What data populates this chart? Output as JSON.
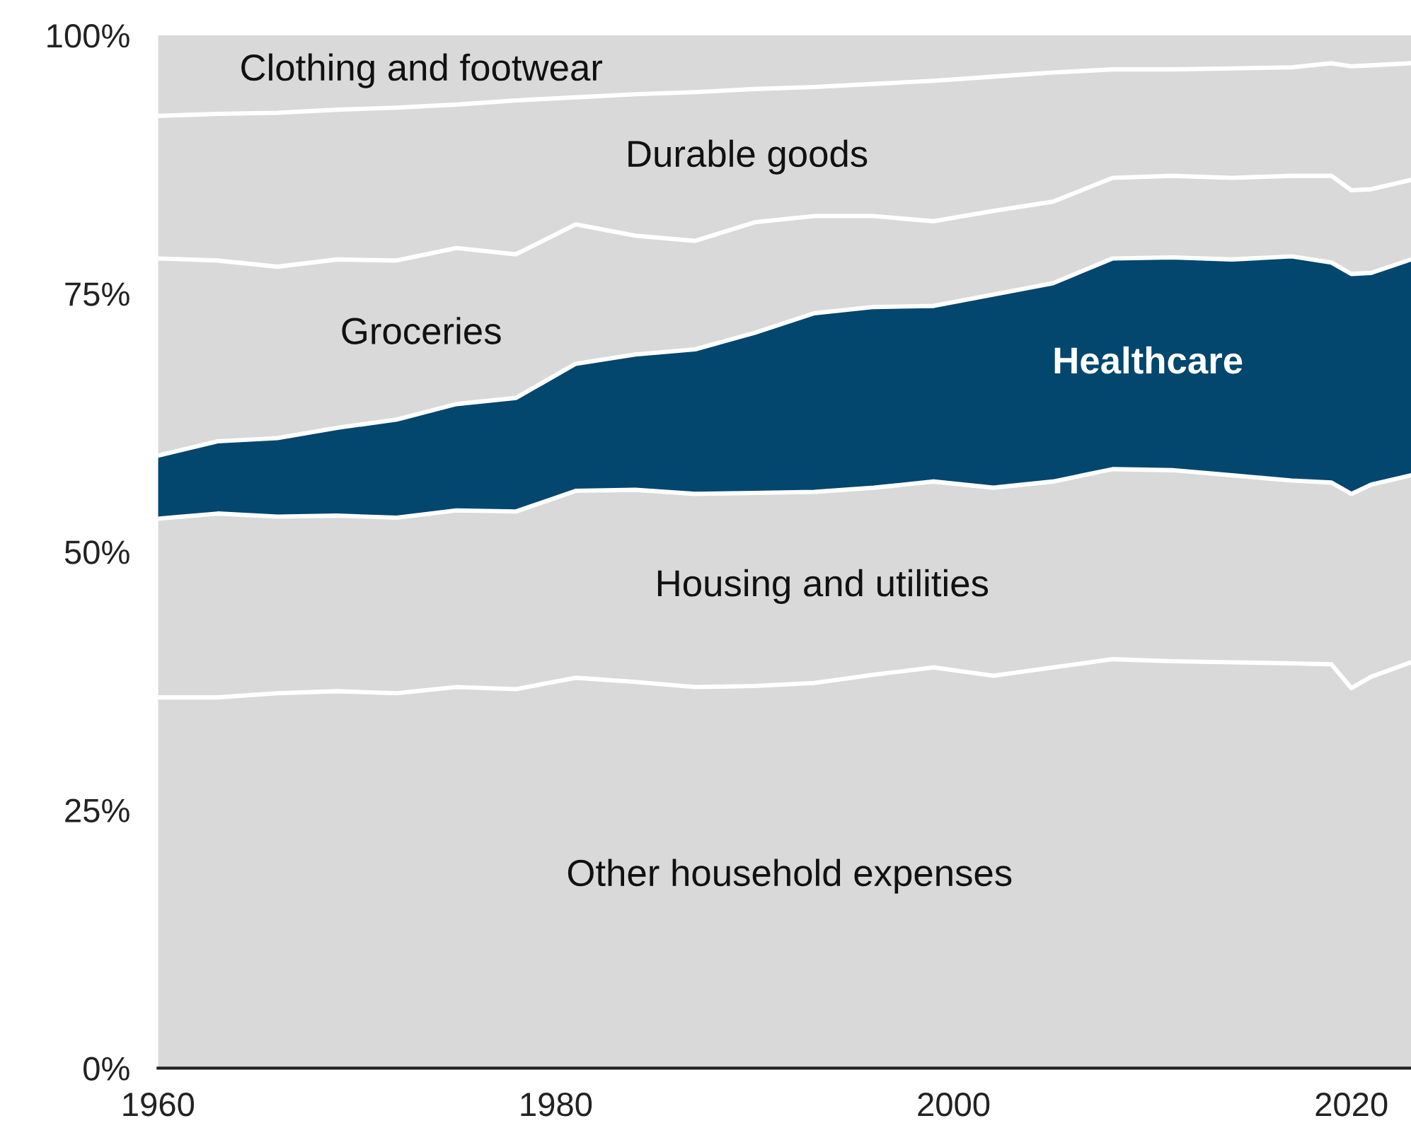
{
  "chart_data": {
    "type": "area",
    "stacked": true,
    "x": [
      1960,
      1963,
      1966,
      1969,
      1972,
      1975,
      1978,
      1981,
      1984,
      1987,
      1990,
      1993,
      1996,
      1999,
      2002,
      2005,
      2008,
      2011,
      2014,
      2017,
      2019,
      2020,
      2021,
      2023
    ],
    "series": [
      {
        "name": "Other household expenses",
        "color": "#d9d9d9",
        "values": [
          35.9,
          35.9,
          36.3,
          36.5,
          36.3,
          36.9,
          36.7,
          37.8,
          37.4,
          36.9,
          37.0,
          37.3,
          38.1,
          38.8,
          38.0,
          38.8,
          39.6,
          39.4,
          39.3,
          39.2,
          39.1,
          36.8,
          37.9,
          39.3
        ]
      },
      {
        "name": "Housing and utilities",
        "color": "#d9d9d9",
        "values": [
          17.3,
          17.8,
          17.1,
          17.0,
          17.0,
          17.1,
          17.2,
          18.1,
          18.6,
          18.7,
          18.7,
          18.5,
          18.1,
          18.0,
          18.2,
          18.0,
          18.4,
          18.5,
          18.1,
          17.7,
          17.6,
          18.8,
          18.6,
          18.1
        ]
      },
      {
        "name": "Healthcare",
        "color": "#03466e",
        "values": [
          6.1,
          7.0,
          7.6,
          8.5,
          9.5,
          10.3,
          11.0,
          12.3,
          13.1,
          14.0,
          15.5,
          17.3,
          17.5,
          17.0,
          18.7,
          19.2,
          20.4,
          20.6,
          20.9,
          21.7,
          21.3,
          21.3,
          20.5,
          20.9
        ]
      },
      {
        "name": "Groceries",
        "color": "#d9d9d9",
        "values": [
          19.1,
          17.5,
          16.6,
          16.3,
          15.4,
          15.1,
          13.9,
          13.5,
          11.5,
          10.5,
          10.7,
          9.4,
          8.8,
          8.2,
          8.1,
          7.9,
          7.8,
          7.9,
          7.9,
          7.8,
          8.4,
          8.1,
          8.1,
          7.7
        ]
      },
      {
        "name": "Durable goods",
        "color": "#d9d9d9",
        "values": [
          13.8,
          14.2,
          14.9,
          14.5,
          14.8,
          13.9,
          14.9,
          12.3,
          13.7,
          14.4,
          12.9,
          12.5,
          12.8,
          13.6,
          13.0,
          12.5,
          10.5,
          10.3,
          10.6,
          10.5,
          10.9,
          12.0,
          12.0,
          11.3
        ]
      },
      {
        "name": "Clothing and footwear",
        "color": "#d9d9d9",
        "values": [
          7.8,
          7.6,
          7.5,
          7.2,
          7.0,
          6.7,
          6.3,
          6.0,
          5.7,
          5.5,
          5.2,
          5.0,
          4.7,
          4.4,
          4.0,
          3.6,
          3.3,
          3.3,
          3.2,
          3.1,
          2.7,
          3.0,
          2.9,
          2.7
        ]
      }
    ],
    "xlim": [
      1960,
      2023
    ],
    "xticks": [
      1960,
      1980,
      2000,
      2020
    ],
    "ylim": [
      0,
      100
    ],
    "yticks": [
      {
        "value": 0,
        "label": "0%"
      },
      {
        "value": 25,
        "label": "25%"
      },
      {
        "value": 50,
        "label": "50%"
      },
      {
        "value": 75,
        "label": "75%"
      },
      {
        "value": 100,
        "label": "100%"
      }
    ],
    "grid": false,
    "legend": false
  }
}
